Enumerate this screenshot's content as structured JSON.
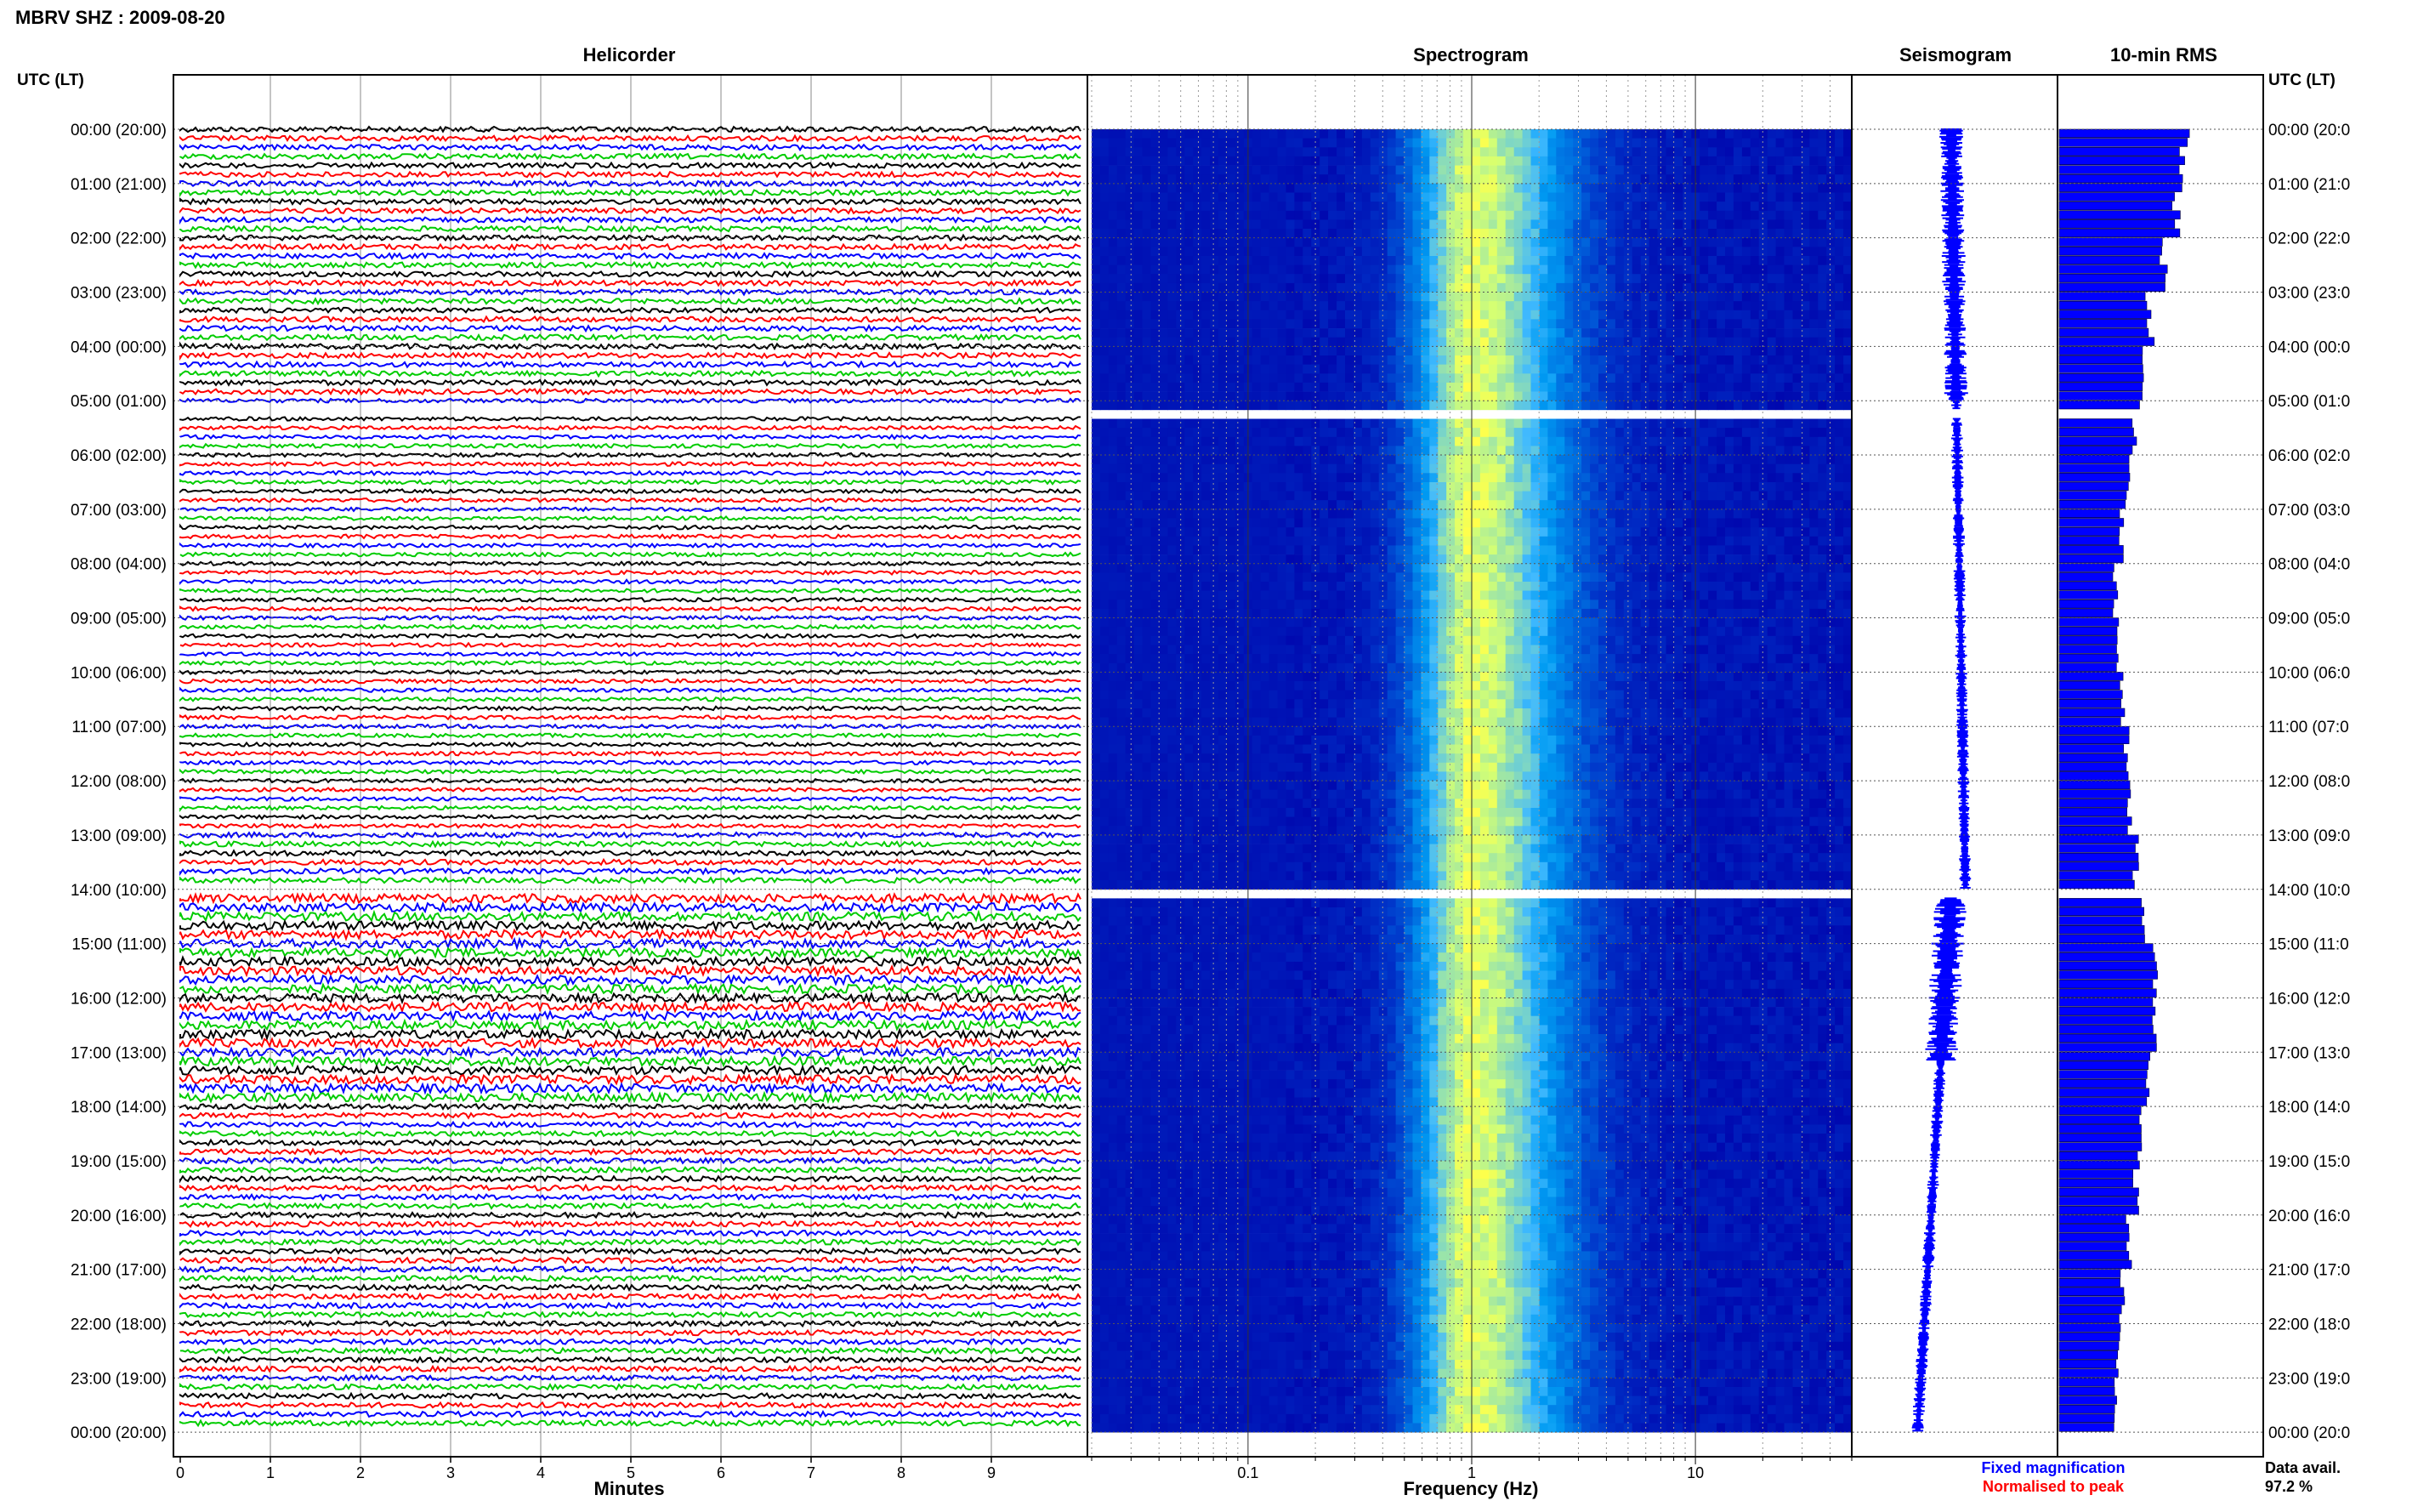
{
  "header": {
    "title": "MBRV SHZ : 2009-08-20"
  },
  "panels": {
    "helicorder": "Helicorder",
    "spectrogram": "Spectrogram",
    "seismogram": "Seismogram",
    "rms": "10-min RMS"
  },
  "axis_labels": {
    "left_utc": "UTC (LT)",
    "right_utc": "UTC (LT)",
    "minutes": "Minutes",
    "frequency": "Frequency (Hz)"
  },
  "time_labels": [
    "00:00 (20:00)",
    "01:00 (21:00)",
    "02:00 (22:00)",
    "03:00 (23:00)",
    "04:00 (00:00)",
    "05:00 (01:00)",
    "06:00 (02:00)",
    "07:00 (03:00)",
    "08:00 (04:00)",
    "09:00 (05:00)",
    "10:00 (06:00)",
    "11:00 (07:00)",
    "12:00 (08:00)",
    "13:00 (09:00)",
    "14:00 (10:00)",
    "15:00 (11:00)",
    "16:00 (12:00)",
    "17:00 (13:00)",
    "18:00 (14:00)",
    "19:00 (15:00)",
    "20:00 (16:00)",
    "21:00 (17:00)",
    "22:00 (18:00)",
    "23:00 (19:00)",
    "00:00 (20:00)"
  ],
  "right_time_labels": [
    "00:00 (20:0",
    "01:00 (21:0",
    "02:00 (22:0",
    "03:00 (23:0",
    "04:00 (00:0",
    "05:00 (01:0",
    "06:00 (02:0",
    "07:00 (03:0",
    "08:00 (04:0",
    "09:00 (05:0",
    "10:00 (06:0",
    "11:00 (07:0",
    "12:00 (08:0",
    "13:00 (09:0",
    "14:00 (10:0",
    "15:00 (11:0",
    "16:00 (12:0",
    "17:00 (13:0",
    "18:00 (14:0",
    "19:00 (15:0",
    "20:00 (16:0",
    "21:00 (17:0",
    "22:00 (18:0",
    "23:00 (19:0",
    "00:00 (20:0"
  ],
  "minute_ticks": [
    "0",
    "1",
    "2",
    "3",
    "4",
    "5",
    "6",
    "7",
    "8",
    "9"
  ],
  "frequency_ticks": [
    "0.1",
    "1",
    "10"
  ],
  "legend": {
    "fixed": "Fixed magnification",
    "normalised": "Normalised to peak",
    "data_avail_label": "Data avail.",
    "data_avail_value": "97.2 %"
  },
  "colors": {
    "trace_cycle": [
      "#000000",
      "#ff0000",
      "#0000ff",
      "#00cc00"
    ],
    "fixed": "#0000ff",
    "normalised": "#ff0000",
    "spectrogram_low": "#0000aa",
    "spectrogram_high": "#ffff40",
    "rms_bar": "#0000ff"
  },
  "chart_data": [
    {
      "type": "line",
      "panel": "helicorder",
      "xlabel": "Minutes",
      "xlim": [
        0,
        10
      ],
      "rows_per_hour": 6,
      "hours": 24,
      "data_gaps_utc": [
        [
          "05:10",
          "05:20"
        ],
        [
          "14:00",
          "14:10"
        ]
      ]
    },
    {
      "type": "heatmap",
      "panel": "spectrogram",
      "xlabel": "Frequency (Hz)",
      "x_scale": "log",
      "xlim": [
        0.02,
        50
      ],
      "peak_frequency_hz": 1.0
    },
    {
      "type": "line",
      "panel": "seismogram"
    },
    {
      "type": "bar",
      "panel": "rms",
      "orientation": "horizontal",
      "interval": "10 min",
      "hourly_relative_level": [
        0.9,
        0.85,
        0.75,
        0.65,
        0.6,
        0.55,
        0.5,
        0.45,
        0.4,
        0.42,
        0.45,
        0.48,
        0.5,
        0.55,
        0.6,
        0.68,
        0.7,
        0.62,
        0.58,
        0.55,
        0.5,
        0.45,
        0.42,
        0.4
      ]
    }
  ]
}
